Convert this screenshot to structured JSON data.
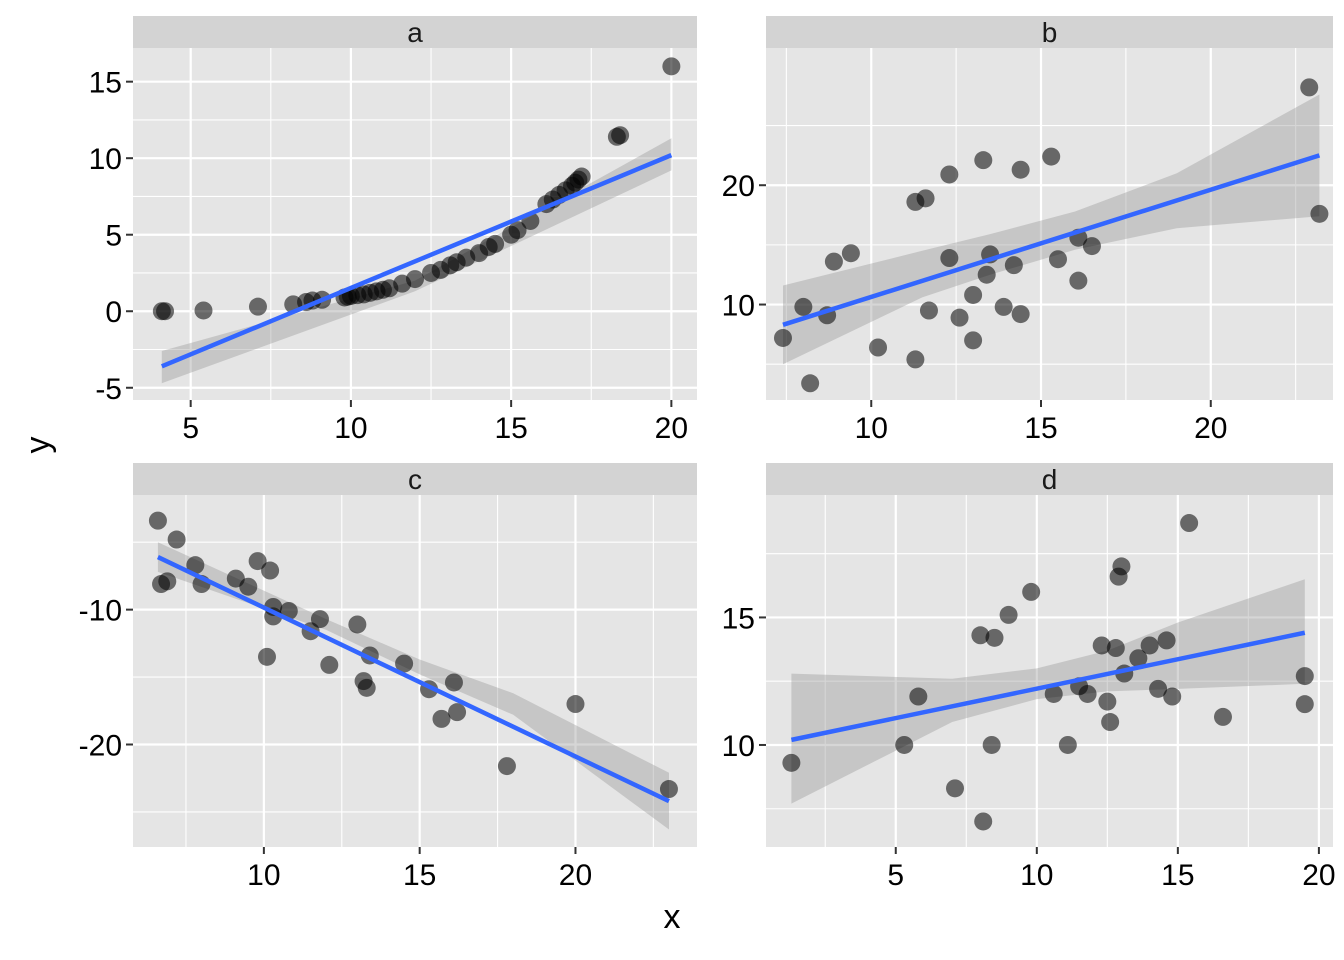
{
  "figure": {
    "xlabel": "x",
    "ylabel": "y"
  },
  "colors": {
    "panel_bg": "#e5e5e5",
    "strip_bg": "#d3d3d3",
    "grid": "#ffffff",
    "point": "#000000",
    "line": "#3366ff",
    "ribbon": "#999999"
  },
  "chart_data": [
    {
      "type": "scatter",
      "facet": "a",
      "xlim": [
        3.2,
        20.8
      ],
      "ylim": [
        -5.8,
        17.2
      ],
      "x_ticks": [
        5,
        10,
        15,
        20
      ],
      "y_ticks": [
        -5,
        0,
        5,
        10,
        15
      ],
      "x_tick_labels": [
        "5",
        "10",
        "15",
        "20"
      ],
      "y_tick_labels": [
        "-5",
        "0",
        "5",
        "10",
        "15"
      ],
      "points": [
        [
          4.1,
          0.0
        ],
        [
          4.2,
          0.0
        ],
        [
          5.4,
          0.05
        ],
        [
          7.1,
          0.3
        ],
        [
          8.2,
          0.45
        ],
        [
          8.6,
          0.6
        ],
        [
          8.8,
          0.7
        ],
        [
          9.1,
          0.75
        ],
        [
          9.8,
          0.9
        ],
        [
          9.9,
          0.95
        ],
        [
          10.0,
          1.0
        ],
        [
          10.2,
          1.05
        ],
        [
          10.4,
          1.1
        ],
        [
          10.6,
          1.2
        ],
        [
          10.8,
          1.3
        ],
        [
          11.0,
          1.4
        ],
        [
          11.2,
          1.5
        ],
        [
          11.6,
          1.8
        ],
        [
          12.0,
          2.1
        ],
        [
          12.5,
          2.5
        ],
        [
          12.8,
          2.7
        ],
        [
          13.1,
          3.0
        ],
        [
          13.3,
          3.2
        ],
        [
          13.6,
          3.5
        ],
        [
          14.0,
          3.8
        ],
        [
          14.3,
          4.2
        ],
        [
          14.5,
          4.4
        ],
        [
          15.0,
          5.0
        ],
        [
          15.2,
          5.3
        ],
        [
          15.6,
          5.9
        ],
        [
          16.1,
          7.0
        ],
        [
          16.3,
          7.3
        ],
        [
          16.5,
          7.6
        ],
        [
          16.7,
          7.9
        ],
        [
          16.9,
          8.2
        ],
        [
          17.0,
          8.4
        ],
        [
          17.1,
          8.6
        ],
        [
          17.2,
          8.8
        ],
        [
          18.3,
          11.4
        ],
        [
          18.4,
          11.5
        ],
        [
          20.0,
          16.0
        ]
      ],
      "fit": {
        "x": [
          4.1,
          20.0
        ],
        "y": [
          -3.6,
          10.2
        ]
      },
      "band": {
        "x": [
          4.1,
          12.0,
          20.0
        ],
        "lower": [
          -4.7,
          1.3,
          9.2
        ],
        "upper": [
          -2.6,
          2.0,
          11.3
        ]
      }
    },
    {
      "type": "scatter",
      "facet": "b",
      "xlim": [
        6.9,
        23.6
      ],
      "ylim": [
        2.0,
        31.5
      ],
      "x_ticks": [
        10,
        15,
        20
      ],
      "y_ticks": [
        10,
        20
      ],
      "x_tick_labels": [
        "10",
        "15",
        "20"
      ],
      "y_tick_labels": [
        "10",
        "20"
      ],
      "points": [
        [
          7.4,
          7.2
        ],
        [
          8.0,
          9.8
        ],
        [
          8.2,
          3.4
        ],
        [
          8.7,
          9.1
        ],
        [
          8.9,
          13.6
        ],
        [
          9.4,
          14.3
        ],
        [
          10.2,
          6.4
        ],
        [
          11.3,
          18.6
        ],
        [
          11.3,
          5.4
        ],
        [
          11.6,
          18.9
        ],
        [
          11.7,
          9.5
        ],
        [
          12.3,
          20.9
        ],
        [
          12.3,
          13.9
        ],
        [
          12.6,
          8.9
        ],
        [
          13.0,
          10.8
        ],
        [
          13.0,
          7.0
        ],
        [
          13.3,
          22.1
        ],
        [
          13.4,
          12.5
        ],
        [
          13.5,
          14.2
        ],
        [
          13.9,
          9.8
        ],
        [
          14.2,
          13.3
        ],
        [
          14.4,
          21.3
        ],
        [
          14.4,
          9.2
        ],
        [
          15.3,
          22.4
        ],
        [
          15.5,
          13.8
        ],
        [
          16.1,
          15.6
        ],
        [
          16.1,
          12.0
        ],
        [
          16.5,
          14.9
        ],
        [
          22.9,
          28.2
        ],
        [
          23.2,
          17.6
        ]
      ],
      "fit": {
        "x": [
          7.4,
          23.2
        ],
        "y": [
          8.3,
          22.5
        ]
      },
      "band": {
        "x": [
          7.4,
          11.5,
          13.5,
          16.0,
          19.0,
          23.2
        ],
        "lower": [
          5.0,
          10.6,
          12.5,
          14.6,
          16.4,
          17.4
        ],
        "upper": [
          11.6,
          14.5,
          15.9,
          17.8,
          21.0,
          27.6
        ]
      }
    },
    {
      "type": "scatter",
      "facet": "c",
      "xlim": [
        5.8,
        23.9
      ],
      "ylim": [
        -27.6,
        -1.5
      ],
      "x_ticks": [
        10,
        15,
        20
      ],
      "y_ticks": [
        -10,
        -20
      ],
      "x_tick_labels": [
        "10",
        "15",
        "20"
      ],
      "y_tick_labels": [
        "-10",
        "-20"
      ],
      "points": [
        [
          6.6,
          -3.4
        ],
        [
          6.7,
          -8.1
        ],
        [
          6.9,
          -7.9
        ],
        [
          7.2,
          -4.8
        ],
        [
          7.8,
          -6.7
        ],
        [
          8.0,
          -8.1
        ],
        [
          9.1,
          -7.7
        ],
        [
          9.5,
          -8.3
        ],
        [
          9.8,
          -6.4
        ],
        [
          10.1,
          -13.5
        ],
        [
          10.2,
          -7.1
        ],
        [
          10.3,
          -9.8
        ],
        [
          10.3,
          -10.5
        ],
        [
          10.8,
          -10.1
        ],
        [
          11.5,
          -11.6
        ],
        [
          11.8,
          -10.7
        ],
        [
          12.1,
          -14.1
        ],
        [
          13.0,
          -11.1
        ],
        [
          13.2,
          -15.3
        ],
        [
          13.3,
          -15.8
        ],
        [
          13.4,
          -13.4
        ],
        [
          14.5,
          -14.0
        ],
        [
          15.3,
          -15.9
        ],
        [
          15.7,
          -18.1
        ],
        [
          16.1,
          -15.4
        ],
        [
          16.2,
          -17.6
        ],
        [
          17.8,
          -21.6
        ],
        [
          20.0,
          -17.0
        ],
        [
          23.0,
          -23.3
        ]
      ],
      "fit": {
        "x": [
          6.6,
          23.0
        ],
        "y": [
          -6.1,
          -24.2
        ]
      },
      "band": {
        "x": [
          6.6,
          12.0,
          15.0,
          18.0,
          23.0
        ],
        "lower": [
          -7.2,
          -11.5,
          -14.8,
          -17.8,
          -26.3
        ],
        "upper": [
          -5.0,
          -10.7,
          -13.7,
          -16.2,
          -22.1
        ]
      }
    },
    {
      "type": "scatter",
      "facet": "d",
      "xlim": [
        0.4,
        20.5
      ],
      "ylim": [
        6.0,
        19.8
      ],
      "x_ticks": [
        5,
        10,
        15,
        20
      ],
      "y_ticks": [
        10,
        15
      ],
      "x_tick_labels": [
        "5",
        "10",
        "15",
        "20"
      ],
      "y_tick_labels": [
        "10",
        "15"
      ],
      "points": [
        [
          1.3,
          9.3
        ],
        [
          5.3,
          10.0
        ],
        [
          5.8,
          11.9
        ],
        [
          7.1,
          8.3
        ],
        [
          8.0,
          14.3
        ],
        [
          8.1,
          7.0
        ],
        [
          8.4,
          10.0
        ],
        [
          8.5,
          14.2
        ],
        [
          9.0,
          15.1
        ],
        [
          9.8,
          16.0
        ],
        [
          10.6,
          12.0
        ],
        [
          11.1,
          10.0
        ],
        [
          11.5,
          12.3
        ],
        [
          11.8,
          12.0
        ],
        [
          12.3,
          13.9
        ],
        [
          12.5,
          11.7
        ],
        [
          12.6,
          10.9
        ],
        [
          12.8,
          13.8
        ],
        [
          12.9,
          16.6
        ],
        [
          13.0,
          17.0
        ],
        [
          13.1,
          12.8
        ],
        [
          13.6,
          13.4
        ],
        [
          14.0,
          13.9
        ],
        [
          14.3,
          12.2
        ],
        [
          14.6,
          14.1
        ],
        [
          14.8,
          11.9
        ],
        [
          15.4,
          18.7
        ],
        [
          16.6,
          11.1
        ],
        [
          19.5,
          12.7
        ],
        [
          19.5,
          11.6
        ]
      ],
      "fit": {
        "x": [
          1.3,
          19.5
        ],
        "y": [
          10.2,
          14.4
        ]
      },
      "band": {
        "x": [
          1.3,
          7.0,
          10.0,
          12.5,
          15.0,
          19.5
        ],
        "lower": [
          7.7,
          10.9,
          11.8,
          12.1,
          12.2,
          12.4
        ],
        "upper": [
          12.8,
          12.6,
          13.0,
          13.7,
          14.8,
          16.5
        ]
      }
    }
  ]
}
